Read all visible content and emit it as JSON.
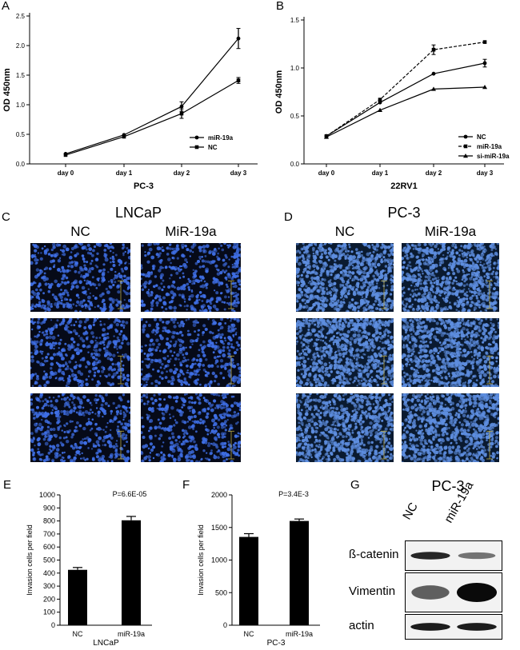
{
  "panels": {
    "A": "A",
    "B": "B",
    "C": "C",
    "D": "D",
    "E": "E",
    "F": "F",
    "G": "G"
  },
  "chart_data": [
    {
      "id": "A",
      "type": "line",
      "xlabel": "PC-3",
      "ylabel": "OD 450nm",
      "categories": [
        "day 0",
        "day 1",
        "day 2",
        "day 3"
      ],
      "ylim": [
        0,
        2.5
      ],
      "yticks": [
        "0.0",
        "0.5",
        "1.0",
        "1.5",
        "2.0",
        "2.5"
      ],
      "ytickvals": [
        0,
        0.5,
        1,
        1.5,
        2,
        2.5
      ],
      "series": [
        {
          "name": "miR-19a",
          "marker": "circle",
          "dash": "solid",
          "values": [
            0.17,
            0.49,
            0.97,
            2.12
          ],
          "errors": [
            0.02,
            0.02,
            0.08,
            0.17
          ]
        },
        {
          "name": "NC",
          "marker": "square",
          "dash": "solid",
          "values": [
            0.15,
            0.46,
            0.85,
            1.41
          ],
          "errors": [
            0.02,
            0.02,
            0.08,
            0.05
          ]
        }
      ]
    },
    {
      "id": "B",
      "type": "line",
      "xlabel": "22RV1",
      "ylabel": "OD 450nm",
      "categories": [
        "day 0",
        "day 1",
        "day 2",
        "day 3"
      ],
      "ylim": [
        0,
        1.5
      ],
      "yticks": [
        "0.0",
        "0.5",
        "1.0",
        "1.5"
      ],
      "ytickvals": [
        0,
        0.5,
        1,
        1.5
      ],
      "series": [
        {
          "name": "NC",
          "marker": "circle",
          "dash": "solid",
          "values": [
            0.29,
            0.64,
            0.94,
            1.05
          ],
          "errors": [
            0.02,
            0.03,
            0.03,
            0.04
          ]
        },
        {
          "name": "miR-19a",
          "marker": "square",
          "dash": "dashed",
          "values": [
            0.29,
            0.67,
            1.19,
            1.27
          ],
          "errors": [
            0.02,
            0.03,
            0.05,
            0.03
          ]
        },
        {
          "name": "si-miR-19a",
          "marker": "triangle",
          "dash": "solid",
          "values": [
            0.28,
            0.56,
            0.78,
            0.8
          ],
          "errors": [
            0.02,
            0.02,
            0.01,
            0.01
          ]
        }
      ]
    },
    {
      "id": "E",
      "type": "bar",
      "xlabel": "LNCaP",
      "ylabel": "Invasion cells per field",
      "categories": [
        "NC",
        "miR-19a"
      ],
      "values": [
        425,
        805
      ],
      "errors": [
        18,
        30
      ],
      "ylim": [
        0,
        1000
      ],
      "yticks": [
        "0",
        "100",
        "200",
        "300",
        "400",
        "500",
        "600",
        "700",
        "800",
        "900",
        "1000"
      ],
      "ytickvals": [
        0,
        100,
        200,
        300,
        400,
        500,
        600,
        700,
        800,
        900,
        1000
      ],
      "annotation": "P=6.6E-05"
    },
    {
      "id": "F",
      "type": "bar",
      "xlabel": "PC-3",
      "ylabel": "Invasion cells per field",
      "categories": [
        "NC",
        "miR-19a"
      ],
      "values": [
        1355,
        1600
      ],
      "errors": [
        50,
        30
      ],
      "ylim": [
        0,
        2000
      ],
      "yticks": [
        "0",
        "500",
        "1000",
        "1500",
        "2000"
      ],
      "ytickvals": [
        0,
        500,
        1000,
        1500,
        2000
      ],
      "annotation": "P=3.4E-3"
    }
  ],
  "micrographs": {
    "C": {
      "title": "LNCaP",
      "groups": [
        "NC",
        "MiR-19a"
      ]
    },
    "D": {
      "title": "PC-3",
      "groups": [
        "NC",
        "MiR-19a"
      ]
    }
  },
  "western_blot": {
    "title": "PC-3",
    "lanes": [
      "NC",
      "miR-19a"
    ],
    "bands": [
      {
        "name": "ß-catenin",
        "intensities": [
          0.85,
          0.45
        ]
      },
      {
        "name": "Vimentin",
        "intensities": [
          0.55,
          1.0
        ]
      },
      {
        "name": "actin",
        "intensities": [
          0.9,
          0.9
        ]
      }
    ]
  },
  "colors": {
    "ink": "#000000",
    "micro_bg": "#060a18",
    "nuclei": "#3f6fe6",
    "nuclei_pc3": "#5e8ee0",
    "scale_bar": "#b8a640"
  }
}
